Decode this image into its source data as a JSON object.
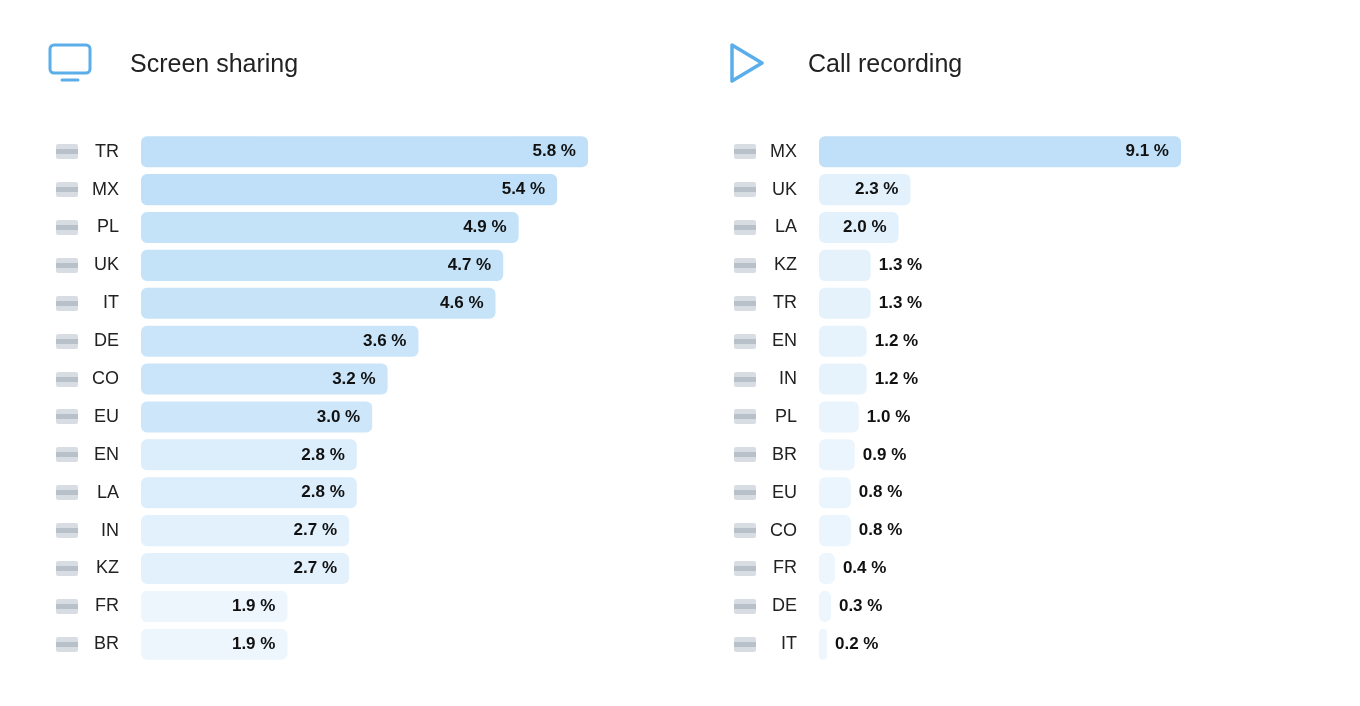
{
  "chart_data": [
    {
      "type": "bar",
      "orientation": "horizontal",
      "title": "Screen sharing",
      "categories": [
        "TR",
        "MX",
        "PL",
        "UK",
        "IT",
        "DE",
        "CO",
        "EU",
        "EN",
        "LA",
        "IN",
        "KZ",
        "FR",
        "BR"
      ],
      "values": [
        5.8,
        5.4,
        4.9,
        4.7,
        4.6,
        3.6,
        3.2,
        3.0,
        2.8,
        2.8,
        2.7,
        2.7,
        1.9,
        1.9
      ],
      "value_labels": [
        "5.8 %",
        "5.4 %",
        "4.9 %",
        "4.7 %",
        "4.6 %",
        "3.6 %",
        "3.2 %",
        "3.0 %",
        "2.8 %",
        "2.8 %",
        "2.7 %",
        "2.7 %",
        "1.9 %",
        "1.9 %"
      ],
      "colors": [
        "#bfe0f8",
        "#bfe0f8",
        "#c4e2f8",
        "#c4e2f8",
        "#c6e3f8",
        "#cae5f9",
        "#cae5f9",
        "#cde6f9",
        "#dcedfb",
        "#dcedfb",
        "#e3f1fc",
        "#e3f1fc",
        "#edf6fd",
        "#edf6fd"
      ]
    },
    {
      "type": "bar",
      "orientation": "horizontal",
      "title": "Call recording",
      "categories": [
        "MX",
        "UK",
        "LA",
        "KZ",
        "TR",
        "EN",
        "IN",
        "PL",
        "BR",
        "EU",
        "CO",
        "FR",
        "DE",
        "IT"
      ],
      "values": [
        9.1,
        2.3,
        2.0,
        1.3,
        1.3,
        1.2,
        1.2,
        1.0,
        0.9,
        0.8,
        0.8,
        0.4,
        0.3,
        0.2
      ],
      "value_labels": [
        "9.1 %",
        "2.3 %",
        "2.0 %",
        "1.3 %",
        "1.3 %",
        "1.2 %",
        "1.2 %",
        "1.0 %",
        "0.9 %",
        "0.8 %",
        "0.8 %",
        "0.4 %",
        "0.3 %",
        "0.2 %"
      ],
      "colors": [
        "#bfe0f8",
        "#e3f1fc",
        "#e3f1fc",
        "#e5f2fc",
        "#e5f2fc",
        "#e7f3fc",
        "#e7f3fc",
        "#e9f4fc",
        "#ebf5fd",
        "#ebf5fd",
        "#ebf5fd",
        "#edf6fd",
        "#edf6fd",
        "#edf6fd"
      ]
    }
  ]
}
